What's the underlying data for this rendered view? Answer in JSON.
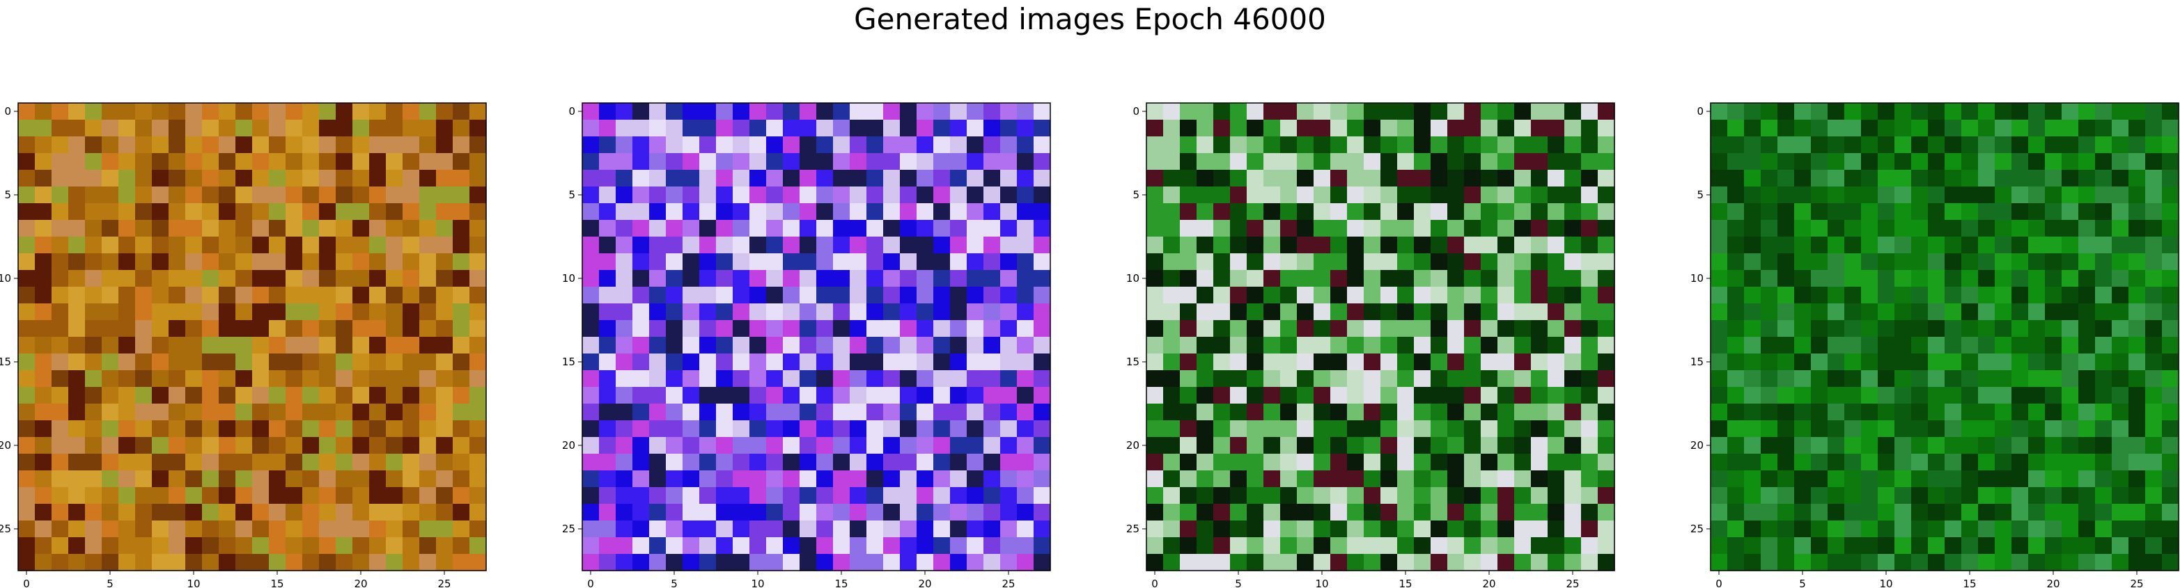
{
  "figure": {
    "title": "Generated images Epoch 46000"
  },
  "colors": {
    "axis": "#000000",
    "background": "#ffffff"
  },
  "chart_data": [
    {
      "type": "heatmap",
      "dominant_palette": [
        "#c8901a",
        "#b87a10",
        "#a86c0c",
        "#d4a030",
        "#9c5a0a",
        "#7a3e08",
        "#c88c50",
        "#d07820",
        "#98a030",
        "#5a1a06"
      ],
      "grid": [
        28,
        28
      ],
      "xticks": [
        0,
        5,
        10,
        15,
        20,
        25
      ],
      "yticks": [
        0,
        5,
        10,
        15,
        20,
        25
      ],
      "xlim": [
        -0.5,
        27.5
      ],
      "ylim": [
        27.5,
        -0.5
      ]
    },
    {
      "type": "heatmap",
      "dominant_palette": [
        "#1808e0",
        "#3a1cf0",
        "#7a3ce0",
        "#b070f0",
        "#d4c4f0",
        "#e8e0f8",
        "#9070e8",
        "#c040e0",
        "#2030a0",
        "#1a1a50"
      ],
      "grid": [
        28,
        28
      ],
      "xticks": [
        0,
        5,
        10,
        15,
        20,
        25
      ],
      "yticks": [
        0,
        5,
        10,
        15,
        20,
        25
      ],
      "xlim": [
        -0.5,
        27.5
      ],
      "ylim": [
        27.5,
        -0.5
      ]
    },
    {
      "type": "heatmap",
      "dominant_palette": [
        "#0a4a08",
        "#083008",
        "#147a14",
        "#2a9a2a",
        "#0a1a0a",
        "#70c070",
        "#a0d0a0",
        "#c8e0c8",
        "#e0e0e8",
        "#501020"
      ],
      "grid": [
        28,
        28
      ],
      "xticks": [
        0,
        5,
        10,
        15,
        20,
        25
      ],
      "yticks": [
        0,
        5,
        10,
        15,
        20,
        25
      ],
      "xlim": [
        -0.5,
        27.5
      ],
      "ylim": [
        27.5,
        -0.5
      ]
    },
    {
      "type": "heatmap",
      "dominant_palette": [
        "#0c7a0c",
        "#0a6a0a",
        "#109010",
        "#0a5a10",
        "#084a08",
        "#1aa01a",
        "#2a8a3a",
        "#063a06",
        "#3aa050",
        "#147020"
      ],
      "grid": [
        28,
        28
      ],
      "xticks": [
        0,
        5,
        10,
        15,
        20,
        25
      ],
      "yticks": [
        0,
        5,
        10,
        15,
        20,
        25
      ],
      "xlim": [
        -0.5,
        27.5
      ],
      "ylim": [
        27.5,
        -0.5
      ]
    }
  ]
}
